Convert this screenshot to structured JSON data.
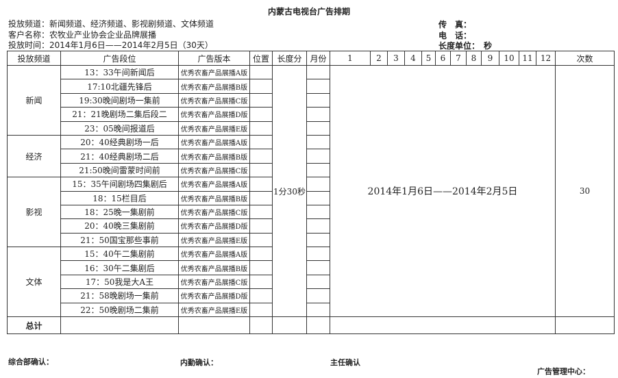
{
  "title": "内蒙古电视台广告排期",
  "info": {
    "channels": "投放频道：新闻频道、经济频道、影视剧频道、文体频道",
    "client": "客户名称：农牧业产业协会企业品牌展播",
    "period": "投放时间：2014年1月6日——2014年2月5日（30天）",
    "fax": "传　真：",
    "phone": "电　话：",
    "unit": "长度单位：　秒"
  },
  "headers": [
    "投放频道",
    "广告段位",
    "广告版本",
    "位置",
    "长度分",
    "月份",
    "1",
    "2",
    "3",
    "4",
    "5",
    "6",
    "7",
    "8",
    "9",
    "10",
    "11",
    "12",
    "次数"
  ],
  "groups": [
    {
      "channel": "新闻",
      "rows": [
        {
          "slot": "13：33午间新闻后",
          "version": "优秀农畜产品展播A版"
        },
        {
          "slot": "17:10北疆先锋后",
          "version": "优秀农畜产品展播B版"
        },
        {
          "slot": "19:30晚间剧场一集前",
          "version": "优秀农畜产品展播C版"
        },
        {
          "slot": "21：21晚剧场二集后段二",
          "version": "优秀农畜产品展播D版"
        },
        {
          "slot": "23：05晚间报道后",
          "version": "优秀农畜产品展播E版"
        }
      ]
    },
    {
      "channel": "经济",
      "rows": [
        {
          "slot": "20：40经典剧场一后",
          "version": "优秀农畜产品展播A版"
        },
        {
          "slot": "21：40经典剧场二后",
          "version": "优秀农畜产品展播B版"
        },
        {
          "slot": "21:50晚间雷蒙时间前",
          "version": "优秀农畜产品展播C版"
        }
      ]
    },
    {
      "channel": "影视",
      "rows": [
        {
          "slot": "15：35午间剧场四集剧后",
          "version": "优秀农畜产品展播A版"
        },
        {
          "slot": "18：15栏目后",
          "version": "优秀农畜产品展播B版"
        },
        {
          "slot": "18：25晚一集剧前",
          "version": "优秀农畜产品展播C版"
        },
        {
          "slot": "20：40晚三集剧前",
          "version": "优秀农畜产品展播D版"
        },
        {
          "slot": "21：50国宝那些事前",
          "version": "优秀农畜产品展播E版"
        }
      ]
    },
    {
      "channel": "文体",
      "rows": [
        {
          "slot": "15：40午二集剧前",
          "version": "优秀农畜产品展播A版"
        },
        {
          "slot": "16：30午二集剧后",
          "version": "优秀农畜产品展播B版"
        },
        {
          "slot": "17：50我是大A王",
          "version": "优秀农畜产品展播C版"
        },
        {
          "slot": "21：58晚剧场一集前",
          "version": "优秀农畜产品展播D版"
        },
        {
          "slot": "22：50晚剧场二集前",
          "version": "优秀农畜产品展播E版"
        }
      ]
    }
  ],
  "length": "1分30秒",
  "date_range": "2014年1月6日——2014年2月5日",
  "count": "30",
  "total_label": "总计",
  "footer": {
    "general": "综合部确认：",
    "internal": "内勤确认：",
    "director": "主任确认",
    "center": "广告管理中心："
  }
}
